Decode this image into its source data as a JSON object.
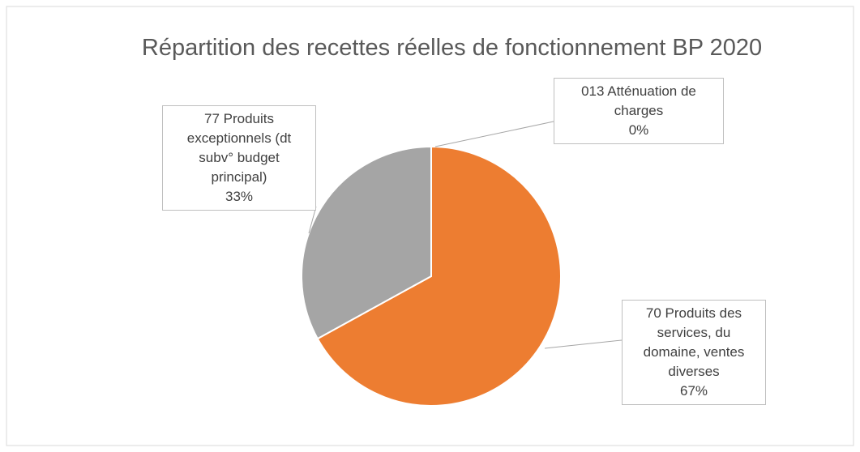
{
  "chart_data": {
    "type": "pie",
    "title": "Répartition des recettes réelles de fonctionnement BP 2020",
    "categories": [
      "013 Atténuation de charges",
      "70 Produits des services, du domaine, ventes diverses",
      "77 Produits exceptionnels (dt subv° budget principal)"
    ],
    "values": [
      0,
      67,
      33
    ],
    "value_labels": [
      "0%",
      "67%",
      "33%"
    ],
    "colors": [
      "#4472C4",
      "#ED7D31",
      "#A5A5A5"
    ]
  }
}
